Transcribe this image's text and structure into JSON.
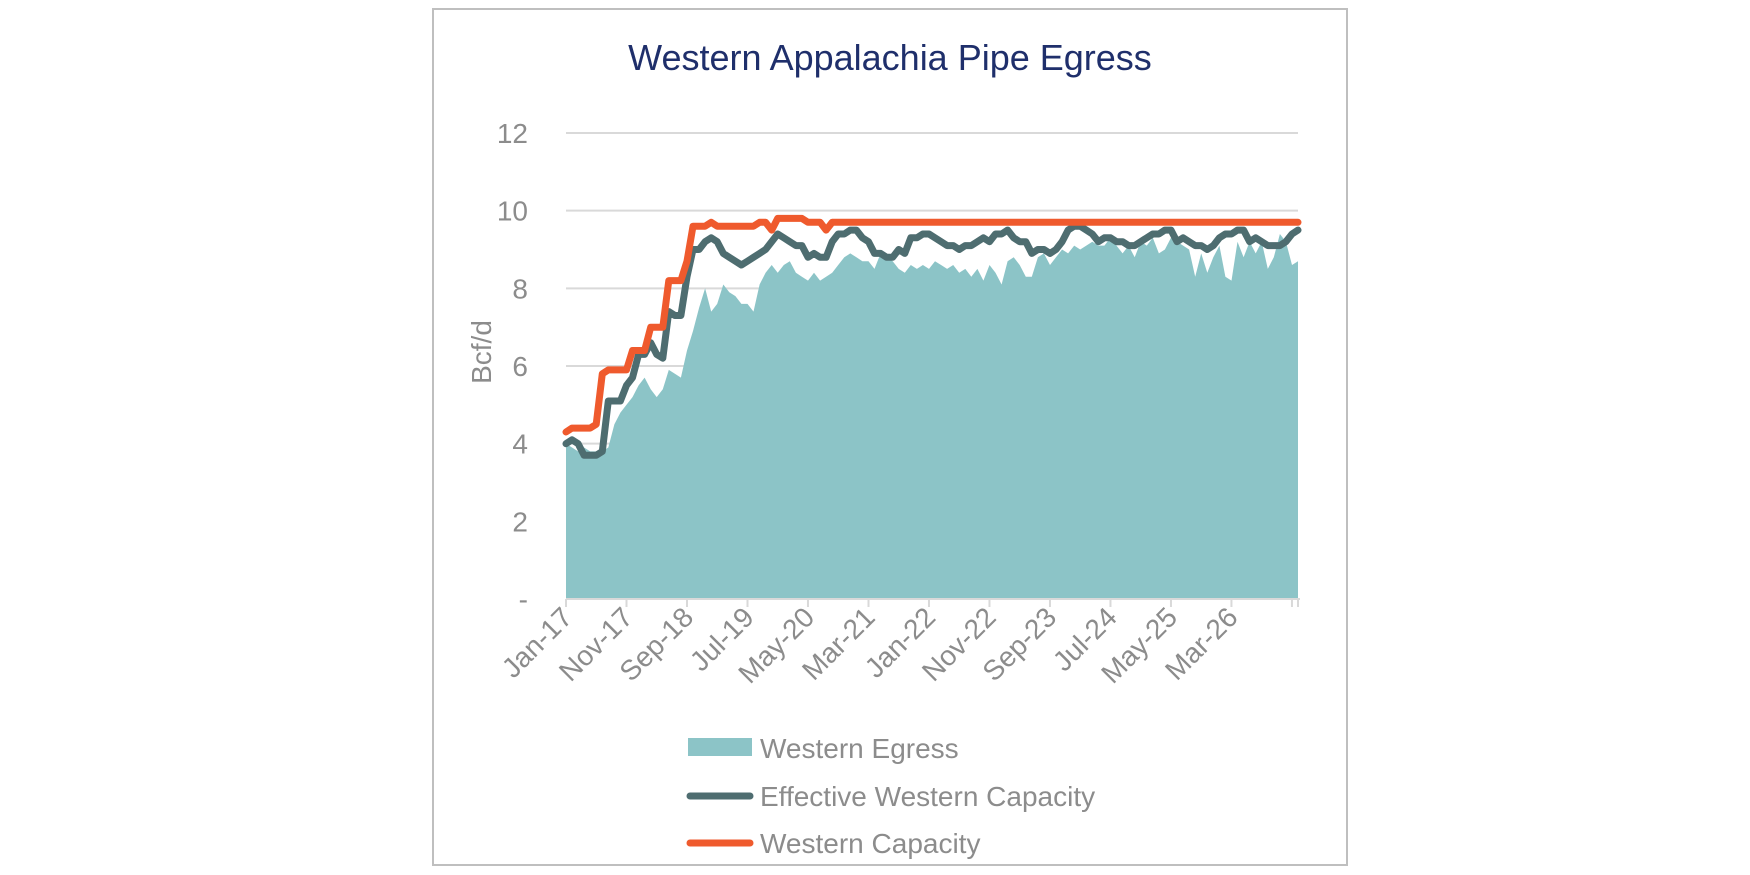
{
  "chart_data": {
    "type": "area",
    "title": "Western Appalachia Pipe Egress",
    "ylabel": "Bcf/d",
    "xlabel": "",
    "ylim": [
      0,
      12
    ],
    "y_ticks": [
      {
        "value": 0,
        "label": "-"
      },
      {
        "value": 2,
        "label": "2"
      },
      {
        "value": 4,
        "label": "4"
      },
      {
        "value": 6,
        "label": "6"
      },
      {
        "value": 8,
        "label": "8"
      },
      {
        "value": 10,
        "label": "10"
      },
      {
        "value": 12,
        "label": "12"
      }
    ],
    "x_tick_labels": [
      "Jan-17",
      "Nov-17",
      "Sep-18",
      "Jul-19",
      "May-20",
      "Mar-21",
      "Jan-22",
      "Nov-22",
      "Sep-23",
      "Jul-24",
      "May-25",
      "Mar-26"
    ],
    "x_start": "Jan-17",
    "x_end": "Dec-26",
    "grid": "horizontal",
    "legend_position": "bottom",
    "colors": {
      "title": "#1f2f6b",
      "axis_text": "#8c8c8c",
      "gridline": "#d9d9d9",
      "frame": "#bfbfbf"
    },
    "series": [
      {
        "name": "Western Egress",
        "kind": "area",
        "color": "#8cc4c7",
        "values": [
          4.0,
          3.9,
          3.8,
          3.9,
          3.8,
          3.8,
          3.8,
          3.9,
          4.5,
          4.8,
          5.0,
          5.2,
          5.5,
          5.7,
          5.4,
          5.2,
          5.4,
          5.9,
          5.8,
          5.7,
          6.4,
          6.9,
          7.5,
          8.0,
          7.4,
          7.6,
          8.1,
          7.9,
          7.8,
          7.6,
          7.6,
          7.4,
          8.1,
          8.4,
          8.6,
          8.4,
          8.6,
          8.7,
          8.4,
          8.3,
          8.2,
          8.4,
          8.2,
          8.3,
          8.4,
          8.6,
          8.8,
          8.9,
          8.8,
          8.7,
          8.7,
          8.5,
          8.9,
          8.8,
          8.7,
          8.5,
          8.4,
          8.6,
          8.5,
          8.6,
          8.5,
          8.7,
          8.6,
          8.5,
          8.6,
          8.4,
          8.5,
          8.3,
          8.5,
          8.2,
          8.6,
          8.4,
          8.1,
          8.7,
          8.8,
          8.6,
          8.3,
          8.3,
          8.8,
          8.9,
          8.6,
          8.8,
          9.0,
          8.9,
          9.1,
          9.0,
          9.1,
          9.2,
          9.1,
          9.1,
          9.3,
          9.1,
          8.9,
          9.1,
          8.8,
          9.2,
          9.1,
          9.3,
          8.9,
          9.0,
          9.3,
          9.2,
          9.1,
          9.0,
          8.3,
          8.9,
          8.4,
          8.8,
          9.1,
          8.3,
          8.2,
          9.2,
          8.8,
          9.2,
          8.9,
          9.2,
          8.5,
          8.8,
          9.4,
          9.2,
          8.6,
          8.7
        ]
      },
      {
        "name": "Effective Western Capacity",
        "kind": "line",
        "color": "#4e6d70",
        "values": [
          4.0,
          4.1,
          4.0,
          3.7,
          3.7,
          3.7,
          3.8,
          5.1,
          5.1,
          5.1,
          5.5,
          5.7,
          6.3,
          6.3,
          6.6,
          6.3,
          6.2,
          7.4,
          7.3,
          7.3,
          8.3,
          9.0,
          9.0,
          9.2,
          9.3,
          9.2,
          8.9,
          8.8,
          8.7,
          8.6,
          8.7,
          8.8,
          8.9,
          9.0,
          9.2,
          9.4,
          9.3,
          9.2,
          9.1,
          9.1,
          8.8,
          8.9,
          8.8,
          8.8,
          9.2,
          9.4,
          9.4,
          9.5,
          9.5,
          9.3,
          9.2,
          8.9,
          8.9,
          8.8,
          8.8,
          9.0,
          8.9,
          9.3,
          9.3,
          9.4,
          9.4,
          9.3,
          9.2,
          9.1,
          9.1,
          9.0,
          9.1,
          9.1,
          9.2,
          9.3,
          9.2,
          9.4,
          9.4,
          9.5,
          9.3,
          9.2,
          9.2,
          8.9,
          9.0,
          9.0,
          8.9,
          9.0,
          9.2,
          9.5,
          9.6,
          9.6,
          9.5,
          9.4,
          9.2,
          9.3,
          9.3,
          9.2,
          9.2,
          9.1,
          9.1,
          9.2,
          9.3,
          9.4,
          9.4,
          9.5,
          9.5,
          9.2,
          9.3,
          9.2,
          9.1,
          9.1,
          9.0,
          9.1,
          9.3,
          9.4,
          9.4,
          9.5,
          9.5,
          9.2,
          9.3,
          9.2,
          9.1,
          9.1,
          9.1,
          9.2,
          9.4,
          9.5
        ]
      },
      {
        "name": "Western Capacity",
        "kind": "line",
        "color": "#ef5a2d",
        "values": [
          4.3,
          4.4,
          4.4,
          4.4,
          4.4,
          4.5,
          5.8,
          5.9,
          5.9,
          5.9,
          5.9,
          6.4,
          6.4,
          6.4,
          7.0,
          7.0,
          7.0,
          8.2,
          8.2,
          8.2,
          8.7,
          9.6,
          9.6,
          9.6,
          9.7,
          9.6,
          9.6,
          9.6,
          9.6,
          9.6,
          9.6,
          9.6,
          9.7,
          9.7,
          9.5,
          9.8,
          9.8,
          9.8,
          9.8,
          9.8,
          9.7,
          9.7,
          9.7,
          9.5,
          9.7,
          9.7,
          9.7,
          9.7,
          9.7,
          9.7,
          9.7,
          9.7,
          9.7,
          9.7,
          9.7,
          9.7,
          9.7,
          9.7,
          9.7,
          9.7,
          9.7,
          9.7,
          9.7,
          9.7,
          9.7,
          9.7,
          9.7,
          9.7,
          9.7,
          9.7,
          9.7,
          9.7,
          9.7,
          9.7,
          9.7,
          9.7,
          9.7,
          9.7,
          9.7,
          9.7,
          9.7,
          9.7,
          9.7,
          9.7,
          9.7,
          9.7,
          9.7,
          9.7,
          9.7,
          9.7,
          9.7,
          9.7,
          9.7,
          9.7,
          9.7,
          9.7,
          9.7,
          9.7,
          9.7,
          9.7,
          9.7,
          9.7,
          9.7,
          9.7,
          9.7,
          9.7,
          9.7,
          9.7,
          9.7,
          9.7,
          9.7,
          9.7,
          9.7,
          9.7,
          9.7,
          9.7,
          9.7,
          9.7,
          9.7,
          9.7,
          9.7,
          9.7
        ]
      }
    ]
  }
}
